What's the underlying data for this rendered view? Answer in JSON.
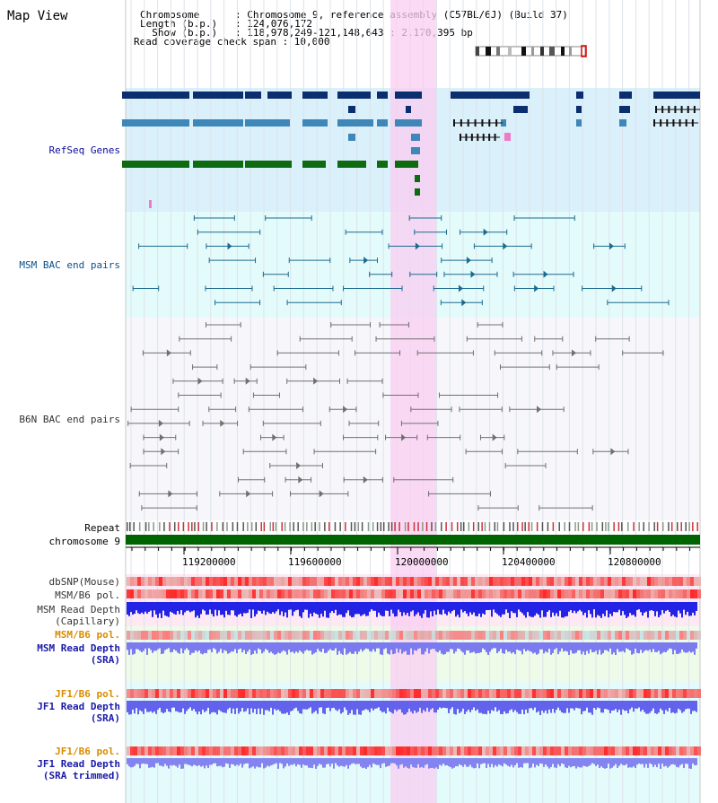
{
  "page": {
    "title": "Map View"
  },
  "header": {
    "lines": [
      "Chromosome      : Chromosome 9, reference assembly (C57BL/6J) (Build 37)",
      "Length (b.p.)   : 124,076,172",
      "  Show (b.p.)   : 118,978,249-121,148,643 : 2,170,395 bp",
      "Read coverage check span : 10,000"
    ]
  },
  "tracks": {
    "refseq_label": "RefSeq Genes",
    "msm_bac_label": "MSM BAC end pairs",
    "b6n_bac_label": "B6N BAC end pairs",
    "repeat_label": "Repeat",
    "chromosome_label": "chromosome 9",
    "axis_ticks": [
      "119200000",
      "119600000",
      "120000000",
      "120400000",
      "120800000"
    ]
  },
  "lower_tracks": [
    {
      "label": "dbSNP(Mouse)"
    },
    {
      "label": "MSM/B6 pol."
    },
    {
      "label": "MSM Read Depth"
    },
    {
      "label": "(Capillary)"
    },
    {
      "label": "MSM/B6 pol."
    },
    {
      "label": "MSM Read Depth"
    },
    {
      "label": "(SRA)"
    },
    {
      "label": "JF1/B6 pol."
    },
    {
      "label": "JF1 Read Depth"
    },
    {
      "label": "(SRA)"
    },
    {
      "label": "JF1/B6 pol."
    },
    {
      "label": "JF1 Read Depth"
    },
    {
      "label": "(SRA trimmed)"
    }
  ],
  "colors": {
    "refseq_bg": "#daf0fa",
    "msm_bg": "#e3fbfb",
    "b6n_bg": "#f7f7fb",
    "highlight": "#f9cdf2",
    "chromosome": "#006400",
    "gene_dark": "#0b2e6e",
    "gene_mid": "#3e87b8",
    "gene_green": "#0f6b0f",
    "msm_line": "#1c6a8e",
    "b6n_line": "#707070"
  }
}
